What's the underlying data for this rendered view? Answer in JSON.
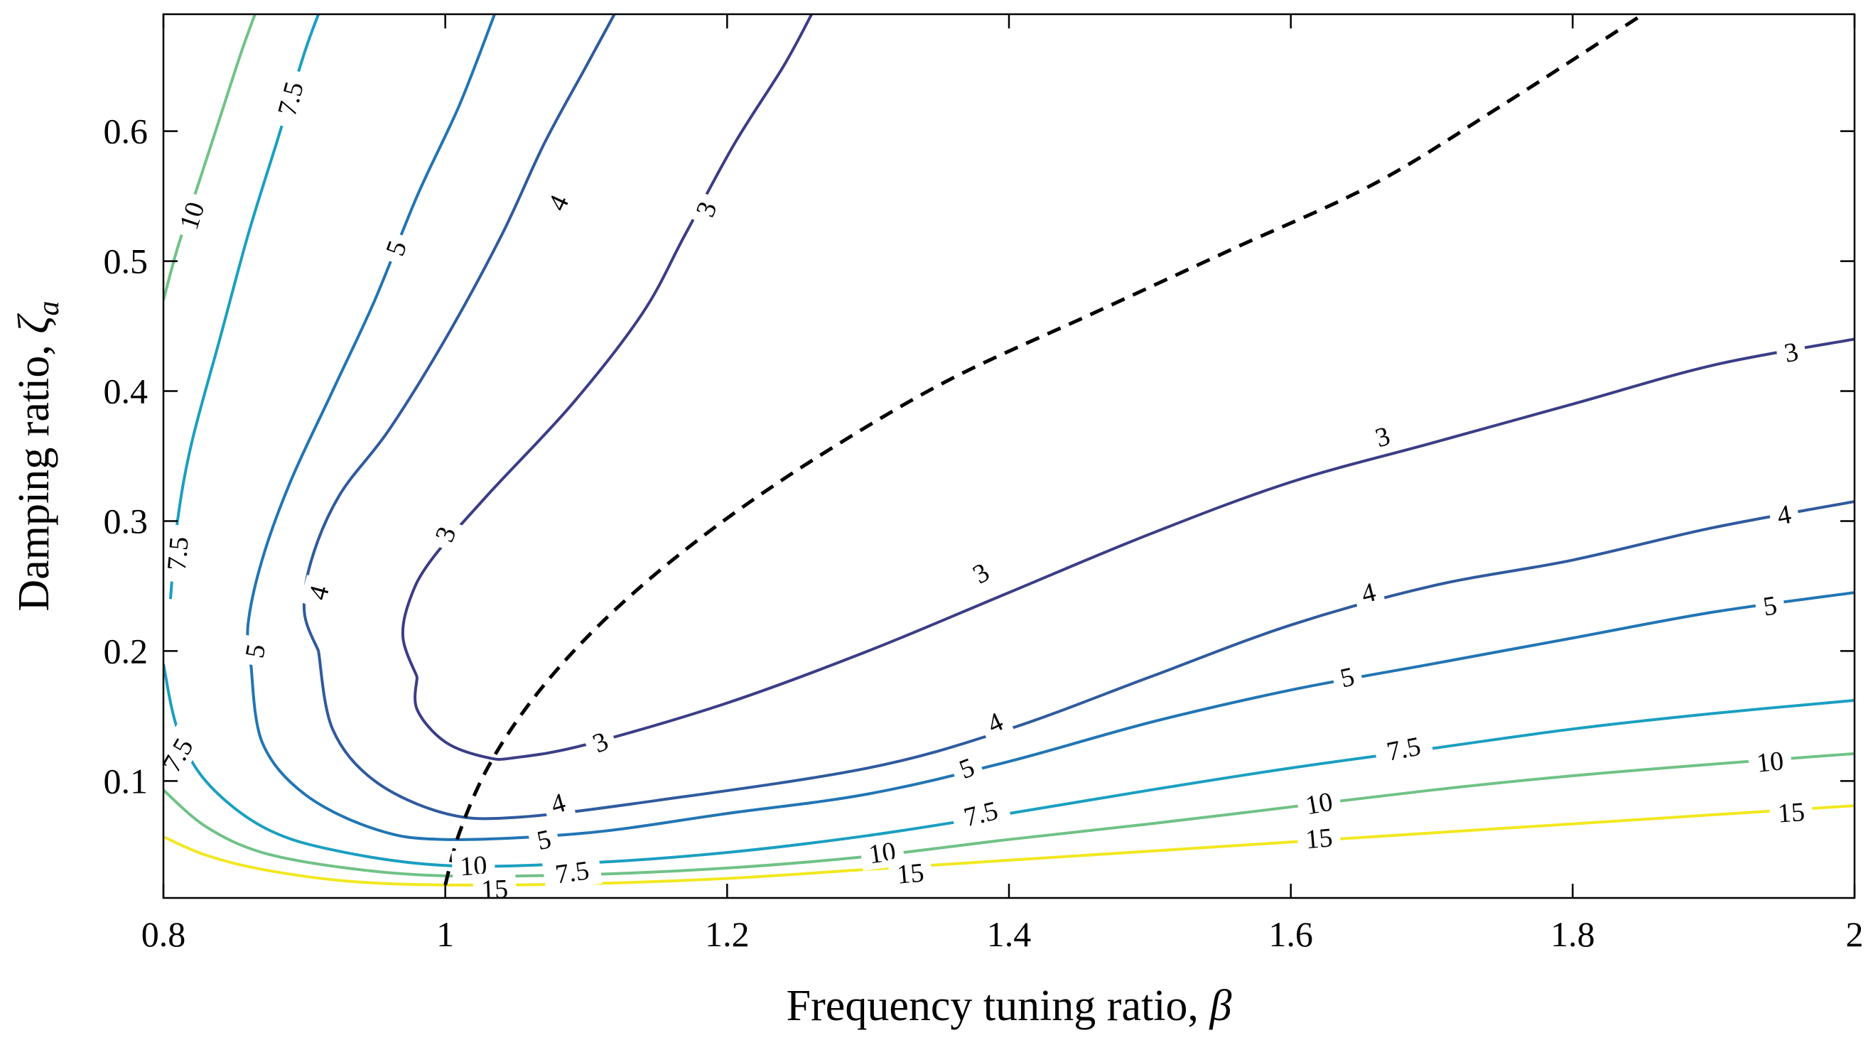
{
  "chart_data": {
    "type": "contour",
    "xlabel": "Frequency tuning ratio, ",
    "xlabel_symbol": "β",
    "ylabel": "Damping ratio, ",
    "ylabel_symbol": "ζ",
    "ylabel_symbol_sub": "a",
    "xlim": [
      0.8,
      2.0
    ],
    "ylim": [
      0.01,
      0.69
    ],
    "xticks": [
      0.8,
      1.0,
      1.2,
      1.4,
      1.6,
      1.8,
      2.0
    ],
    "xtick_labels": [
      "0.8",
      "1",
      "1.2",
      "1.4",
      "1.6",
      "1.8",
      "2"
    ],
    "yticks": [
      0.1,
      0.2,
      0.3,
      0.4,
      0.5,
      0.6
    ],
    "ytick_labels": [
      "0.1",
      "0.2",
      "0.3",
      "0.4",
      "0.5",
      "0.6"
    ],
    "grid": false,
    "colors": {
      "3": "#3b3d86",
      "4": "#2f5a9e",
      "5": "#2175b4",
      "7.5": "#1a9fc1",
      "10": "#70c286",
      "15": "#f2e81f",
      "optimal": "#000000"
    },
    "contours": [
      {
        "level": "3",
        "segments": [
          [
            [
              0.98,
              0.18
            ],
            [
              0.97,
              0.21
            ],
            [
              0.975,
              0.24
            ],
            [
              0.99,
              0.27
            ],
            [
              1.03,
              0.32
            ],
            [
              1.09,
              0.39
            ],
            [
              1.14,
              0.46
            ],
            [
              1.17,
              0.52
            ],
            [
              1.205,
              0.59
            ],
            [
              1.24,
              0.65
            ],
            [
              1.26,
              0.69
            ]
          ],
          [
            [
              0.98,
              0.18
            ],
            [
              0.98,
              0.155
            ],
            [
              1.0,
              0.13
            ],
            [
              1.03,
              0.118
            ],
            [
              1.05,
              0.118
            ],
            [
              1.1,
              0.128
            ],
            [
              1.2,
              0.16
            ],
            [
              1.3,
              0.2
            ],
            [
              1.4,
              0.245
            ],
            [
              1.5,
              0.29
            ],
            [
              1.6,
              0.33
            ],
            [
              1.7,
              0.36
            ],
            [
              1.8,
              0.39
            ],
            [
              1.9,
              0.42
            ],
            [
              2.0,
              0.44
            ]
          ]
        ],
        "labels": [
          [
            1.185,
            0.54,
            -69
          ],
          [
            1.0,
            0.29,
            -69
          ],
          [
            1.38,
            0.26,
            -30
          ],
          [
            1.11,
            0.13,
            -23
          ],
          [
            1.665,
            0.365,
            -17
          ],
          [
            1.955,
            0.43,
            -11
          ]
        ]
      },
      {
        "level": "4",
        "segments": [
          [
            [
              0.91,
              0.2
            ],
            [
              0.9,
              0.23
            ],
            [
              0.905,
              0.27
            ],
            [
              0.925,
              0.32
            ],
            [
              0.96,
              0.37
            ],
            [
              1.0,
              0.44
            ],
            [
              1.04,
              0.52
            ],
            [
              1.07,
              0.59
            ],
            [
              1.1,
              0.65
            ],
            [
              1.12,
              0.69
            ]
          ],
          [
            [
              0.91,
              0.2
            ],
            [
              0.92,
              0.14
            ],
            [
              0.95,
              0.1
            ],
            [
              1.0,
              0.075
            ],
            [
              1.05,
              0.072
            ],
            [
              1.15,
              0.085
            ],
            [
              1.3,
              0.11
            ],
            [
              1.4,
              0.14
            ],
            [
              1.5,
              0.18
            ],
            [
              1.6,
              0.22
            ],
            [
              1.7,
              0.25
            ],
            [
              1.8,
              0.27
            ],
            [
              1.9,
              0.295
            ],
            [
              2.0,
              0.315
            ]
          ]
        ],
        "labels": [
          [
            1.08,
            0.545,
            -65
          ],
          [
            0.91,
            0.245,
            -75
          ],
          [
            1.39,
            0.145,
            -25
          ],
          [
            1.08,
            0.083,
            -16
          ],
          [
            1.655,
            0.245,
            -14
          ],
          [
            1.95,
            0.305,
            -10
          ]
        ]
      },
      {
        "level": "5",
        "segments": [
          [
            [
              0.862,
              0.19
            ],
            [
              0.86,
              0.22
            ],
            [
              0.87,
              0.27
            ],
            [
              0.89,
              0.33
            ],
            [
              0.92,
              0.4
            ],
            [
              0.95,
              0.47
            ],
            [
              0.98,
              0.55
            ],
            [
              1.01,
              0.62
            ],
            [
              1.035,
              0.69
            ]
          ],
          [
            [
              0.862,
              0.19
            ],
            [
              0.87,
              0.13
            ],
            [
              0.9,
              0.09
            ],
            [
              0.95,
              0.063
            ],
            [
              1.0,
              0.055
            ],
            [
              1.1,
              0.06
            ],
            [
              1.2,
              0.075
            ],
            [
              1.3,
              0.09
            ],
            [
              1.4,
              0.115
            ],
            [
              1.5,
              0.145
            ],
            [
              1.6,
              0.17
            ],
            [
              1.7,
              0.19
            ],
            [
              1.8,
              0.21
            ],
            [
              1.9,
              0.23
            ],
            [
              2.0,
              0.245
            ]
          ]
        ],
        "labels": [
          [
            0.965,
            0.51,
            -70
          ],
          [
            0.865,
            0.2,
            -80
          ],
          [
            1.37,
            0.11,
            -21
          ],
          [
            1.07,
            0.055,
            -12
          ],
          [
            1.64,
            0.18,
            -13
          ],
          [
            1.94,
            0.235,
            -9
          ]
        ]
      },
      {
        "level": "7.5",
        "segments": [
          [
            [
              0.805,
              0.24
            ],
            [
              0.81,
              0.3
            ],
            [
              0.82,
              0.36
            ],
            [
              0.84,
              0.44
            ],
            [
              0.86,
              0.52
            ],
            [
              0.88,
              0.59
            ],
            [
              0.9,
              0.66
            ],
            [
              0.91,
              0.69
            ]
          ],
          [
            [
              0.8,
              0.19
            ],
            [
              0.81,
              0.14
            ],
            [
              0.83,
              0.1
            ],
            [
              0.87,
              0.065
            ],
            [
              0.92,
              0.047
            ],
            [
              1.0,
              0.035
            ],
            [
              1.1,
              0.037
            ],
            [
              1.2,
              0.045
            ],
            [
              1.3,
              0.058
            ],
            [
              1.4,
              0.075
            ],
            [
              1.5,
              0.093
            ],
            [
              1.6,
              0.11
            ],
            [
              1.7,
              0.125
            ],
            [
              1.8,
              0.14
            ],
            [
              1.9,
              0.152
            ],
            [
              2.0,
              0.162
            ]
          ]
        ],
        "labels": [
          [
            0.89,
            0.625,
            -75
          ],
          [
            0.81,
            0.275,
            -85
          ],
          [
            0.81,
            0.12,
            -60
          ],
          [
            1.38,
            0.075,
            -14
          ],
          [
            1.09,
            0.03,
            -8
          ],
          [
            1.68,
            0.125,
            -11
          ]
        ]
      },
      {
        "level": "10",
        "segments": [
          [
            [
              0.8,
              0.47
            ],
            [
              0.81,
              0.51
            ],
            [
              0.825,
              0.56
            ],
            [
              0.84,
              0.61
            ],
            [
              0.855,
              0.66
            ],
            [
              0.865,
              0.69
            ]
          ],
          [
            [
              0.8,
              0.093
            ],
            [
              0.83,
              0.065
            ],
            [
              0.87,
              0.045
            ],
            [
              0.93,
              0.033
            ],
            [
              1.0,
              0.027
            ],
            [
              1.1,
              0.028
            ],
            [
              1.2,
              0.033
            ],
            [
              1.3,
              0.042
            ],
            [
              1.4,
              0.055
            ],
            [
              1.5,
              0.067
            ],
            [
              1.6,
              0.08
            ],
            [
              1.7,
              0.093
            ],
            [
              1.8,
              0.104
            ],
            [
              1.9,
              0.113
            ],
            [
              2.0,
              0.121
            ]
          ]
        ],
        "labels": [
          [
            0.82,
            0.535,
            -72
          ],
          [
            1.31,
            0.045,
            -8
          ],
          [
            1.62,
            0.083,
            -10
          ],
          [
            1.94,
            0.115,
            -6
          ],
          [
            1.02,
            0.035,
            -3
          ]
        ]
      },
      {
        "level": "15",
        "segments": [
          [
            [
              0.8,
              0.057
            ],
            [
              0.83,
              0.043
            ],
            [
              0.87,
              0.032
            ],
            [
              0.93,
              0.023
            ],
            [
              1.0,
              0.02
            ],
            [
              1.1,
              0.021
            ],
            [
              1.2,
              0.025
            ],
            [
              1.3,
              0.032
            ],
            [
              1.4,
              0.039
            ],
            [
              1.5,
              0.046
            ],
            [
              1.6,
              0.053
            ],
            [
              1.7,
              0.06
            ],
            [
              1.8,
              0.067
            ],
            [
              1.9,
              0.074
            ],
            [
              2.0,
              0.081
            ]
          ]
        ],
        "labels": [
          [
            1.33,
            0.029,
            -5
          ],
          [
            1.62,
            0.056,
            -5
          ],
          [
            1.955,
            0.076,
            -4
          ],
          [
            1.035,
            0.017,
            -2
          ]
        ]
      }
    ],
    "optimal_curve": {
      "style": "dashed",
      "points": [
        [
          1.0,
          0.02
        ],
        [
          1.01,
          0.06
        ],
        [
          1.03,
          0.11
        ],
        [
          1.06,
          0.16
        ],
        [
          1.1,
          0.21
        ],
        [
          1.15,
          0.26
        ],
        [
          1.21,
          0.31
        ],
        [
          1.28,
          0.36
        ],
        [
          1.36,
          0.41
        ],
        [
          1.46,
          0.46
        ],
        [
          1.56,
          0.51
        ],
        [
          1.66,
          0.56
        ],
        [
          1.75,
          0.62
        ],
        [
          1.85,
          0.69
        ]
      ]
    }
  }
}
